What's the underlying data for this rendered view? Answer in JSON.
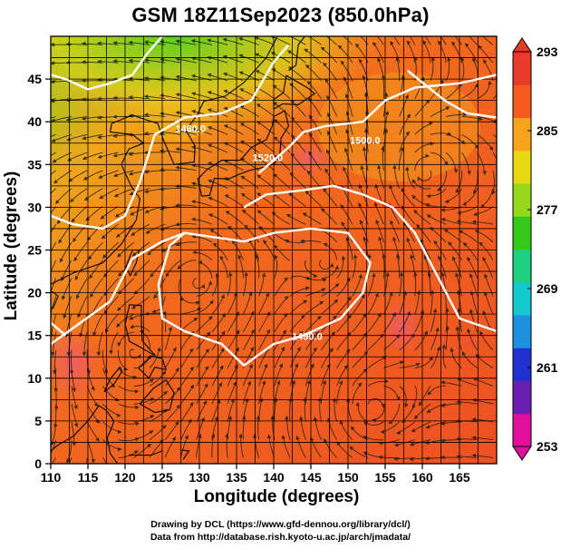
{
  "title": "GSM 18Z11Sep2023 (850.0hPa)",
  "x_axis": {
    "label": "Longitude (degrees)",
    "ticks": [
      110,
      115,
      120,
      125,
      130,
      135,
      140,
      145,
      150,
      155,
      160,
      165
    ],
    "range": [
      110,
      170
    ]
  },
  "y_axis": {
    "label": "Latitude  (degrees)",
    "ticks": [
      0,
      5,
      10,
      15,
      20,
      25,
      30,
      35,
      40,
      45
    ],
    "range": [
      0,
      50
    ]
  },
  "colorbar": {
    "ticks": [
      253,
      261,
      269,
      277,
      285,
      293
    ],
    "range": [
      253,
      293
    ],
    "colors": [
      "#e0109c",
      "#6a1fb0",
      "#1f2fd0",
      "#1f8fe0",
      "#14c8d0",
      "#1fd080",
      "#34c81a",
      "#98d81a",
      "#e8d812",
      "#f7a41a",
      "#f35a1c",
      "#e83a2a"
    ]
  },
  "contours": [
    {
      "label": "1490.0"
    },
    {
      "label": "1460.0"
    },
    {
      "label": "1520.0"
    },
    {
      "label": "1500.0"
    }
  ],
  "credits": {
    "line1": "Drawing by DCL (https://www.gfd-dennou.org/library/dcl/)",
    "line2": "Data from http://database.rish.kyoto-u.ac.jp/arch/jmadata/"
  }
}
